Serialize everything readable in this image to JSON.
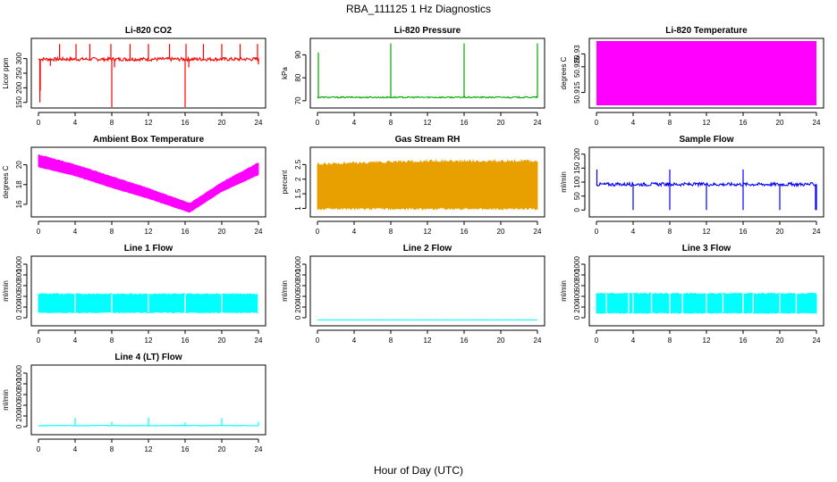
{
  "figure": {
    "title": "RBA_111125  1 Hz Diagnostics",
    "xlabel": "Hour of Day (UTC)"
  },
  "chart_data": [
    {
      "id": "co2",
      "type": "line",
      "title": "Li-820 CO2",
      "ylabel": "Licor ppm",
      "color": "#ff0000",
      "xlim": [
        0,
        24
      ],
      "xticks": [
        0,
        4,
        8,
        12,
        16,
        20,
        24
      ],
      "ylim": [
        140,
        360
      ],
      "yticks": [
        150,
        200,
        250,
        300
      ],
      "base": 298,
      "noise": 6,
      "spikes": [
        {
          "x": 0.15,
          "y": 150
        },
        {
          "x": 0.2,
          "y": 190
        },
        {
          "x": 1.3,
          "y": 275
        },
        {
          "x": 2.3,
          "y": 350
        },
        {
          "x": 4.1,
          "y": 350
        },
        {
          "x": 5.6,
          "y": 350
        },
        {
          "x": 7.9,
          "y": 350
        },
        {
          "x": 8.0,
          "y": 130
        },
        {
          "x": 8.3,
          "y": 270
        },
        {
          "x": 10.0,
          "y": 350
        },
        {
          "x": 12.0,
          "y": 350
        },
        {
          "x": 14.3,
          "y": 350
        },
        {
          "x": 16.0,
          "y": 120
        },
        {
          "x": 16.1,
          "y": 350
        },
        {
          "x": 16.4,
          "y": 270
        },
        {
          "x": 18.0,
          "y": 350
        },
        {
          "x": 20.0,
          "y": 350
        },
        {
          "x": 22.0,
          "y": 350
        },
        {
          "x": 23.9,
          "y": 350
        },
        {
          "x": 24.0,
          "y": 280
        }
      ]
    },
    {
      "id": "pressure",
      "type": "line",
      "title": "Li-820 Pressure",
      "ylabel": "kPa",
      "color": "#00aa00",
      "xlim": [
        0,
        24
      ],
      "xticks": [
        0,
        4,
        8,
        12,
        16,
        20,
        24
      ],
      "ylim": [
        68,
        96
      ],
      "yticks": [
        70,
        80,
        90
      ],
      "base": 71.5,
      "noise": 0.3,
      "spikes": [
        {
          "x": 0.1,
          "y": 91
        },
        {
          "x": 8.0,
          "y": 95
        },
        {
          "x": 16.0,
          "y": 95
        },
        {
          "x": 24.0,
          "y": 95
        }
      ]
    },
    {
      "id": "licor_temp",
      "type": "area",
      "title": "Li-820 Temperature",
      "ylabel": "degrees C",
      "color": "#ff00ff",
      "xlim": [
        0,
        24
      ],
      "xticks": [
        0,
        4,
        8,
        12,
        16,
        20,
        24
      ],
      "ylim": [
        50.91,
        50.935
      ],
      "yticks": [
        50.915,
        50.925,
        50.93
      ],
      "low": 50.91,
      "high": 50.935
    },
    {
      "id": "ambient",
      "type": "band",
      "title": "Ambient Box Temperature",
      "ylabel": "degrees C",
      "color": "#ff00ff",
      "xlim": [
        0,
        24
      ],
      "xticks": [
        0,
        4,
        8,
        12,
        16,
        20,
        24
      ],
      "ylim": [
        15,
        21.5
      ],
      "yticks": [
        16,
        18,
        20
      ],
      "upper": [
        [
          0,
          21.0
        ],
        [
          4,
          20.0
        ],
        [
          8,
          18.8
        ],
        [
          12,
          17.6
        ],
        [
          16.5,
          16.1
        ],
        [
          20,
          18.2
        ],
        [
          24,
          20.2
        ]
      ],
      "lower": [
        [
          0,
          19.8
        ],
        [
          4,
          18.9
        ],
        [
          8,
          17.7
        ],
        [
          12,
          16.6
        ],
        [
          16.5,
          15.2
        ],
        [
          20,
          17.3
        ],
        [
          24,
          19.0
        ]
      ]
    },
    {
      "id": "rh",
      "type": "band",
      "title": "Gas Stream RH",
      "ylabel": "percent",
      "color": "#e8a000",
      "xlim": [
        0,
        24
      ],
      "xticks": [
        0,
        4,
        8,
        12,
        16,
        20,
        24
      ],
      "ylim": [
        0.8,
        3.0
      ],
      "yticks": [
        1.0,
        1.5,
        2.0,
        2.5
      ],
      "upper": [
        [
          0,
          2.5
        ],
        [
          12,
          2.6
        ],
        [
          24,
          2.6
        ]
      ],
      "lower": [
        [
          0,
          1.0
        ],
        [
          12,
          1.0
        ],
        [
          24,
          1.0
        ]
      ]
    },
    {
      "id": "sample",
      "type": "line",
      "title": "Sample Flow",
      "ylabel": "ml/min",
      "color": "#0000ff",
      "xlim": [
        0,
        24
      ],
      "xticks": [
        0,
        4,
        8,
        12,
        16,
        20,
        24
      ],
      "ylim": [
        -15,
        215
      ],
      "yticks": [
        0,
        50,
        100,
        150,
        200
      ],
      "base": 92,
      "noise": 6,
      "spikes": [
        {
          "x": 0.05,
          "y": 145
        },
        {
          "x": 4.0,
          "y": 0
        },
        {
          "x": 8.0,
          "y": 145
        },
        {
          "x": 8.0,
          "y": 0
        },
        {
          "x": 12.0,
          "y": 0
        },
        {
          "x": 16.0,
          "y": 145
        },
        {
          "x": 16.0,
          "y": 0
        },
        {
          "x": 20.0,
          "y": 0
        },
        {
          "x": 23.9,
          "y": 0
        },
        {
          "x": 24.0,
          "y": 0
        }
      ]
    },
    {
      "id": "line1",
      "type": "band",
      "title": "Line 1 Flow",
      "ylabel": "ml/min",
      "color": "#00ffff",
      "xlim": [
        0,
        24
      ],
      "xticks": [
        0,
        4,
        8,
        12,
        16,
        20,
        24
      ],
      "ylim": [
        -100,
        1100
      ],
      "yticks": [
        0,
        200,
        400,
        600,
        800,
        1000
      ],
      "upper": [
        [
          0,
          440
        ],
        [
          24,
          440
        ]
      ],
      "lower": [
        [
          0,
          100
        ],
        [
          24,
          100
        ]
      ],
      "gaps": [
        4,
        8,
        12,
        16,
        20,
        24
      ]
    },
    {
      "id": "line2",
      "type": "line",
      "title": "Line 2 Flow",
      "ylabel": "ml/min",
      "color": "#00ffff",
      "xlim": [
        0,
        24
      ],
      "xticks": [
        0,
        4,
        8,
        12,
        16,
        20,
        24
      ],
      "ylim": [
        -100,
        1100
      ],
      "yticks": [
        0,
        200,
        400,
        600,
        800,
        1000
      ],
      "base": -40,
      "noise": 2,
      "spikes": []
    },
    {
      "id": "line3",
      "type": "band",
      "title": "Line 3 Flow",
      "ylabel": "ml/min",
      "color": "#00ffff",
      "xlim": [
        0,
        24
      ],
      "xticks": [
        0,
        4,
        8,
        12,
        16,
        20,
        24
      ],
      "ylim": [
        -100,
        1100
      ],
      "yticks": [
        0,
        200,
        400,
        600,
        800,
        1000
      ],
      "upper": [
        [
          0,
          450
        ],
        [
          24,
          450
        ]
      ],
      "lower": [
        [
          0,
          90
        ],
        [
          24,
          90
        ]
      ],
      "gaps": [
        1.1,
        3.5,
        4.0,
        6.0,
        8.0,
        9.4,
        12.0,
        13.8,
        16.0,
        17.1,
        20.0,
        21.8
      ]
    },
    {
      "id": "line4",
      "type": "line",
      "title": "Line 4 (LT) Flow",
      "ylabel": "ml/min",
      "color": "#00ffff",
      "xlim": [
        0,
        24
      ],
      "xticks": [
        0,
        4,
        8,
        12,
        16,
        20,
        24
      ],
      "ylim": [
        -100,
        1100
      ],
      "yticks": [
        0,
        200,
        400,
        600,
        800,
        1000
      ],
      "base": 20,
      "noise": 6,
      "spikes": [
        {
          "x": 4.0,
          "y": 160
        },
        {
          "x": 8.0,
          "y": 90
        },
        {
          "x": 12.0,
          "y": 170
        },
        {
          "x": 16.0,
          "y": 80
        },
        {
          "x": 20.0,
          "y": 160
        },
        {
          "x": 24.0,
          "y": 90
        }
      ]
    }
  ]
}
